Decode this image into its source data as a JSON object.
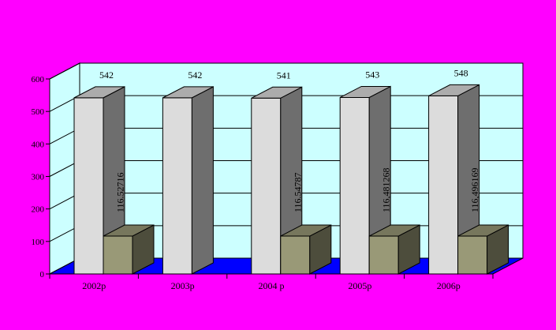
{
  "chart_data": {
    "type": "bar",
    "style": "3d-clustered-column",
    "categories": [
      "2002p",
      "2003p",
      "2004 p",
      "2005p",
      "2006p"
    ],
    "series": [
      {
        "values": [
          542,
          542,
          541,
          543,
          548
        ],
        "labels": [
          "542",
          "542",
          "541",
          "543",
          "548"
        ],
        "color": "#dcdcdc"
      },
      {
        "values": [
          116.52716,
          null,
          116.54787,
          116.481268,
          116.496169
        ],
        "labels": [
          "116.52716",
          "",
          "116.54787",
          "116,481268",
          "116,496169"
        ],
        "color": "#999977"
      }
    ],
    "y_ticks": [
      "0",
      "100",
      "200",
      "300",
      "400",
      "500",
      "600"
    ],
    "ylim": [
      0,
      600
    ],
    "grid": true,
    "colors": {
      "background": "#ff00ff",
      "back_wall": "#ccffff",
      "side_wall": "#ccffff",
      "floor": "#0000ff",
      "gridline": "#000000"
    }
  }
}
